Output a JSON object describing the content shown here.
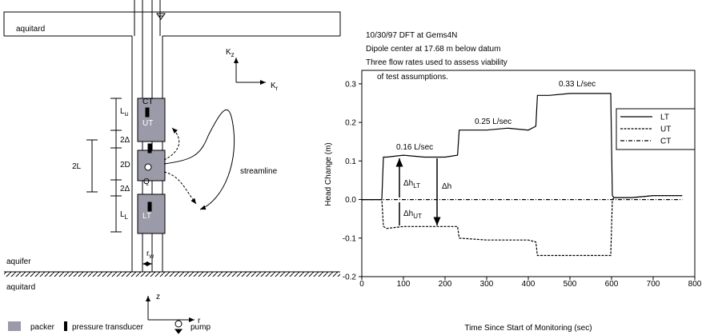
{
  "diagram": {
    "top_layer": "aquitard",
    "aquifer": "aquifer",
    "bottom_layer": "aquitard",
    "ct": "CT",
    "ut": "UT",
    "lt": "LT",
    "q": "Q",
    "lu": {
      "base": "L",
      "sub": "u"
    },
    "delta_top": "2Δ",
    "two_d": "2D",
    "delta_bottom": "2Δ",
    "ll": {
      "base": "L",
      "sub": "L"
    },
    "two_l": "2L",
    "streamline": "streamline",
    "kz": {
      "base": "K",
      "sub": "z"
    },
    "kr": {
      "base": "K",
      "sub": "r"
    },
    "rw": {
      "base": "r",
      "sub": "w"
    },
    "z": "z",
    "r": "r",
    "legend": [
      "packer",
      "pressure transducer",
      "pump"
    ]
  },
  "chart_data": {
    "type": "line",
    "title_lines": [
      "10/30/97 DFT at Gems4N",
      "Dipole center at 17.68 m below datum",
      "Three flow rates used to assess viability",
      "of test assumptions."
    ],
    "x_label": "Time Since Start of Monitoring (sec)",
    "y_label": "Head Change (m)",
    "x": [
      0,
      48,
      52,
      60,
      100,
      150,
      200,
      230,
      234,
      300,
      350,
      400,
      418,
      422,
      450,
      500,
      550,
      598,
      602,
      606,
      650,
      700,
      770
    ],
    "series": [
      {
        "name": "LT",
        "color": "#000000",
        "style": "solid",
        "values": [
          0,
          0,
          0.11,
          0.11,
          0.115,
          0.11,
          0.11,
          0.115,
          0.18,
          0.18,
          0.185,
          0.18,
          0.19,
          0.27,
          0.27,
          0.275,
          0.275,
          0.275,
          0.01,
          0.005,
          0.005,
          0.01,
          0.01
        ]
      },
      {
        "name": "UT",
        "color": "#000000",
        "style": "dashed",
        "values": [
          0,
          0,
          -0.07,
          -0.075,
          -0.07,
          -0.07,
          -0.07,
          -0.07,
          -0.1,
          -0.105,
          -0.105,
          -0.105,
          -0.11,
          -0.145,
          -0.145,
          -0.145,
          -0.145,
          -0.145,
          0,
          0.005,
          0.005,
          0.01,
          0.01
        ]
      },
      {
        "name": "CT",
        "color": "#000000",
        "style": "dashdot",
        "values": [
          0,
          0,
          0,
          0,
          0,
          0,
          0,
          0,
          0,
          0,
          0,
          0,
          0,
          0,
          0,
          0,
          0,
          0,
          0,
          0,
          0,
          0,
          0
        ]
      }
    ],
    "xlim": [
      0,
      800
    ],
    "xticks": [
      0,
      100,
      200,
      300,
      400,
      500,
      600,
      700,
      800
    ],
    "ylim": [
      -0.2,
      0.335
    ],
    "yticks": [
      -0.2,
      -0.1,
      {
        "value": 0,
        "label": "0.0"
      },
      0.1,
      0.2,
      0.3
    ],
    "legend": "upper right",
    "rate_labels": [
      "0.16 L/sec",
      "0.25 L/sec",
      "0.33 L/sec"
    ],
    "delta_labels": [
      {
        "text": "Δh",
        "sub": "LT"
      },
      {
        "text": "Δh"
      },
      {
        "text": "Δh",
        "sub": "UT"
      }
    ]
  }
}
